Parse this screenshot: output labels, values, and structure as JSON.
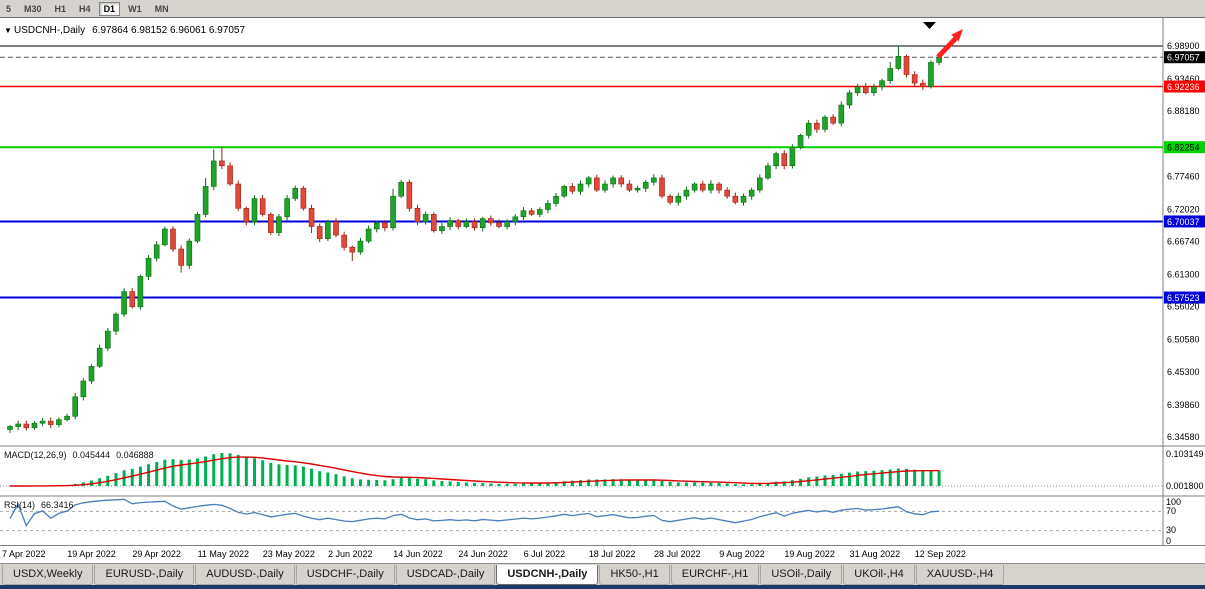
{
  "window": {
    "title_arrow": "▼",
    "title": "USDCNH-,Daily",
    "ohlc": "6.97864 6.98152 6.96061 6.97057"
  },
  "toolbar": {
    "buttons": [
      "5",
      "M30",
      "H1",
      "H4",
      "D1",
      "W1",
      "MN"
    ],
    "active": "D1"
  },
  "price_axis": {
    "ticks": [
      {
        "text": "6.98900",
        "price": 6.989
      },
      {
        "text": "6.93460",
        "price": 6.9346
      },
      {
        "text": "6.88180",
        "price": 6.8818
      },
      {
        "text": "6.77460",
        "price": 6.7746
      },
      {
        "text": "6.72020",
        "price": 6.7202
      },
      {
        "text": "6.66740",
        "price": 6.6674
      },
      {
        "text": "6.61300",
        "price": 6.613
      },
      {
        "text": "6.56020",
        "price": 6.5602
      },
      {
        "text": "6.50580",
        "price": 6.5058
      },
      {
        "text": "6.45300",
        "price": 6.453
      },
      {
        "text": "6.39860",
        "price": 6.3986
      },
      {
        "text": "6.34580",
        "price": 6.3458
      }
    ]
  },
  "lines": [
    {
      "name": "hline-black-resistance",
      "price": 6.989,
      "color": "#000000",
      "width": 1,
      "style": "solid"
    },
    {
      "name": "current-bid-line",
      "price": 6.97057,
      "color": "#555555",
      "width": 1,
      "style": "dash",
      "box": {
        "text": "6.97057",
        "bg": "#000000",
        "fg": "#ffffff"
      }
    },
    {
      "name": "hline-red-resistance",
      "price": 6.92236,
      "color": "#ff0000",
      "width": 1.5,
      "style": "solid",
      "box": {
        "text": "6.92236",
        "bg": "#ff0000",
        "fg": "#ffffff"
      }
    },
    {
      "name": "hline-green-support",
      "price": 6.82254,
      "color": "#00d400",
      "width": 2,
      "style": "solid",
      "box": {
        "text": "6.82254",
        "bg": "#00d400",
        "fg": "#000000"
      }
    },
    {
      "name": "hline-blue-support-1",
      "price": 6.70037,
      "color": "#0000d8",
      "width": 2,
      "style": "solid",
      "box": {
        "text": "6.70037",
        "bg": "#0000d8",
        "fg": "#ffffff"
      }
    },
    {
      "name": "hline-blue-support-2",
      "price": 6.57523,
      "color": "#0000d8",
      "width": 2,
      "style": "solid",
      "box": {
        "text": "6.57523",
        "bg": "#0000d8",
        "fg": "#ffffff"
      }
    }
  ],
  "annotations": {
    "up_arrow": {
      "type": "arrow-up-right",
      "color": "#ff1f1f"
    },
    "top_marker": {
      "type": "triangle-down",
      "color": "#000000"
    }
  },
  "macd_panel": {
    "label": "MACD(12,26,9)",
    "value_main": "0.045444",
    "value_signal": "0.046888",
    "axis_labels": [
      "0.103149",
      "0.001800"
    ]
  },
  "rsi_panel": {
    "label": "RSI(14)",
    "value": "66.3416",
    "axis_labels": [
      "100",
      "70",
      "30",
      "0"
    ],
    "levels": [
      70,
      30
    ]
  },
  "tabs": {
    "items": [
      "USDX,Weekly",
      "EURUSD-,Daily",
      "AUDUSD-,Daily",
      "USDCHF-,Daily",
      "USDCAD-,Daily",
      "USDCNH-,Daily",
      "HK50-,H1",
      "EURCHF-,H1",
      "USOil-,Daily",
      "UKOil-,H4",
      "XAUUSD-,H4"
    ],
    "active": "USDCNH-,Daily"
  },
  "colors": {
    "up": "#1ea32b",
    "up_stroke": "#0a6e12",
    "down": "#e0493a",
    "down_stroke": "#9e2418",
    "macd_hist": "#00b050",
    "macd_signal": "#dd0000",
    "rsi_line": "#4a7ebb"
  },
  "chart_data": {
    "type": "candlestick",
    "symbol": "USDCNH-",
    "timeframe": "Daily",
    "ohlc_display": {
      "open": "6.97864",
      "high": "6.98152",
      "low": "6.96061",
      "close": "6.97057"
    },
    "x_tick_labels": [
      "7 Apr 2022",
      "19 Apr 2022",
      "29 Apr 2022",
      "11 May 2022",
      "23 May 2022",
      "2 Jun 2022",
      "14 Jun 2022",
      "24 Jun 2022",
      "6 Jul 2022",
      "18 Jul 2022",
      "28 Jul 2022",
      "9 Aug 2022",
      "19 Aug 2022",
      "31 Aug 2022",
      "12 Sep 2022"
    ],
    "bars_between_ticks": 8,
    "y_range": [
      6.3458,
      6.989
    ],
    "first_open": 6.358,
    "closes": [
      6.363,
      6.3672,
      6.361,
      6.3685,
      6.372,
      6.3662,
      6.3742,
      6.38,
      6.412,
      6.438,
      6.462,
      6.492,
      6.52,
      6.548,
      6.585,
      6.56,
      6.61,
      6.64,
      6.662,
      6.688,
      6.655,
      6.628,
      6.668,
      6.712,
      6.758,
      6.8,
      6.792,
      6.762,
      6.722,
      6.7,
      6.738,
      6.712,
      6.682,
      6.708,
      6.738,
      6.755,
      6.722,
      6.692,
      6.672,
      6.7,
      6.678,
      6.658,
      6.65,
      6.668,
      6.688,
      6.698,
      6.69,
      6.742,
      6.765,
      6.722,
      6.7,
      6.712,
      6.685,
      6.692,
      6.702,
      6.692,
      6.7,
      6.69,
      6.705,
      6.698,
      6.692,
      6.7,
      6.708,
      6.718,
      6.712,
      6.72,
      6.73,
      6.742,
      6.758,
      6.75,
      6.762,
      6.772,
      6.752,
      6.762,
      6.772,
      6.762,
      6.752,
      6.755,
      6.765,
      6.772,
      6.742,
      6.732,
      6.742,
      6.752,
      6.762,
      6.752,
      6.762,
      6.752,
      6.742,
      6.732,
      6.742,
      6.752,
      6.772,
      6.792,
      6.812,
      6.792,
      6.822,
      6.842,
      6.862,
      6.852,
      6.872,
      6.862,
      6.892,
      6.912,
      6.922,
      6.912,
      6.922,
      6.932,
      6.952,
      6.972,
      6.942,
      6.928,
      6.922,
      6.962,
      6.9706
    ],
    "extra_high_wicks": {
      "24": 0.008,
      "25": 0.014,
      "26": 0.02,
      "47": 0.006,
      "108": 0.005,
      "109": 0.012
    },
    "extra_low_wicks": {
      "21": 0.006,
      "37": 0.005,
      "42": 0.009
    },
    "support_resistance_levels": [
      6.989,
      6.92236,
      6.82254,
      6.70037,
      6.57523
    ],
    "indicators": [
      {
        "name": "MACD",
        "params": [
          12,
          26,
          9
        ],
        "current_macd": 0.045444,
        "current_signal": 0.046888
      },
      {
        "name": "RSI",
        "params": [
          14
        ],
        "current": 66.3416
      }
    ]
  }
}
